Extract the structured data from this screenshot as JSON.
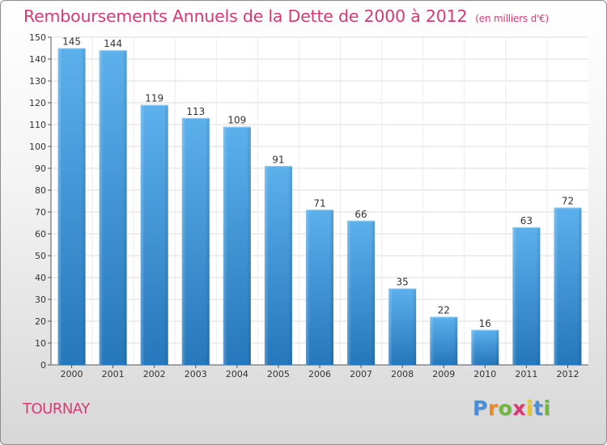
{
  "title": "Remboursements Annuels de la Dette de 2000 à 2012",
  "unit_note": "(en milliers d'€)",
  "commune": "TOURNAY",
  "logo": {
    "letters": [
      "P",
      "r",
      "o",
      "x",
      "i",
      "t",
      "i"
    ],
    "colors": [
      "#4a8fd6",
      "#e8892a",
      "#6fb83c",
      "#d63a74",
      "#e8c62a",
      "#4a8fd6",
      "#6fb83c"
    ]
  },
  "chart_data": {
    "type": "bar",
    "categories": [
      "2000",
      "2001",
      "2002",
      "2003",
      "2004",
      "2005",
      "2006",
      "2007",
      "2008",
      "2009",
      "2010",
      "2011",
      "2012"
    ],
    "values": [
      145,
      144,
      119,
      113,
      109,
      91,
      71,
      66,
      35,
      22,
      16,
      63,
      72
    ],
    "ylim": [
      0,
      150
    ],
    "yticks": [
      0,
      10,
      20,
      30,
      40,
      50,
      60,
      70,
      80,
      90,
      100,
      110,
      120,
      130,
      140,
      150
    ],
    "grid": true,
    "bar_color": "#3e95d9",
    "data_labels": true
  }
}
